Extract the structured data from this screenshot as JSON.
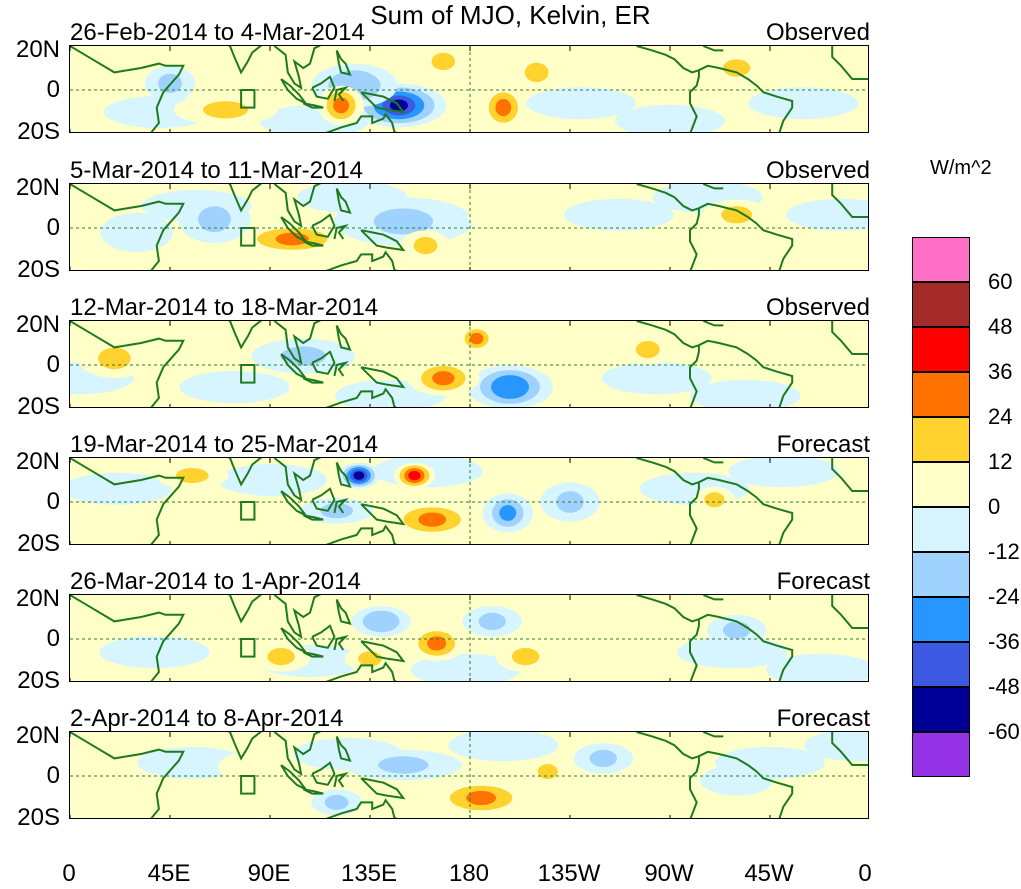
{
  "title": "Sum of MJO, Kelvin, ER",
  "units": "W/m^2",
  "lat_labels": [
    "20N",
    "0",
    "20S"
  ],
  "lon_labels": [
    "0",
    "45E",
    "90E",
    "135E",
    "180",
    "135W",
    "90W",
    "45W",
    "0"
  ],
  "colorbar": {
    "colors": [
      "#ff6ec7",
      "#a52a2a",
      "#ff0000",
      "#ff7200",
      "#ffd22e",
      "#ffffc8",
      "#d7f5ff",
      "#a0d2ff",
      "#2896ff",
      "#3c5ae1",
      "#000096",
      "#9632e6"
    ],
    "labels": [
      "60",
      "48",
      "36",
      "24",
      "12",
      "0",
      "-12",
      "-24",
      "-36",
      "-48",
      "-60"
    ]
  },
  "panels": [
    {
      "label": "26-Feb-2014 to 4-Mar-2014",
      "status": "Observed",
      "anomalies": [
        {
          "lon": 148,
          "lat": -7,
          "rx": 20,
          "ry": 9,
          "v": -55
        },
        {
          "lon": 128,
          "lat": 2,
          "rx": 18,
          "ry": 9,
          "v": -24
        },
        {
          "lon": 195,
          "lat": -8,
          "rx": 9,
          "ry": 9,
          "v": 30
        },
        {
          "lon": 122,
          "lat": -7,
          "rx": 9,
          "ry": 8,
          "v": 26
        },
        {
          "lon": 70,
          "lat": -9,
          "rx": 22,
          "ry": 6,
          "v": 22
        },
        {
          "lon": 210,
          "lat": 8,
          "rx": 10,
          "ry": 7,
          "v": 14
        },
        {
          "lon": 45,
          "lat": 3,
          "rx": 10,
          "ry": 7,
          "v": -16
        },
        {
          "lon": 168,
          "lat": 13,
          "rx": 10,
          "ry": 6,
          "v": 12
        },
        {
          "lon": 300,
          "lat": 10,
          "rx": 12,
          "ry": 6,
          "v": 14
        }
      ]
    },
    {
      "label": "5-Mar-2014 to 11-Mar-2014",
      "status": "Observed",
      "anomalies": [
        {
          "lon": 100,
          "lat": -5,
          "rx": 25,
          "ry": 6,
          "v": 30
        },
        {
          "lon": 65,
          "lat": 4,
          "rx": 15,
          "ry": 10,
          "v": -22
        },
        {
          "lon": 150,
          "lat": 3,
          "rx": 30,
          "ry": 10,
          "v": -14
        },
        {
          "lon": 160,
          "lat": -8,
          "rx": 10,
          "ry": 6,
          "v": 12
        },
        {
          "lon": 200,
          "lat": 5,
          "rx": 20,
          "ry": 5,
          "v": 10
        },
        {
          "lon": 300,
          "lat": 6,
          "rx": 14,
          "ry": 6,
          "v": 14
        },
        {
          "lon": 30,
          "lat": -2,
          "rx": 15,
          "ry": 8,
          "v": -12
        }
      ]
    },
    {
      "label": "12-Mar-2014 to 18-Mar-2014",
      "status": "Observed",
      "anomalies": [
        {
          "lon": 198,
          "lat": -10,
          "rx": 18,
          "ry": 9,
          "v": -36
        },
        {
          "lon": 168,
          "lat": -6,
          "rx": 15,
          "ry": 7,
          "v": 26
        },
        {
          "lon": 183,
          "lat": 12,
          "rx": 7,
          "ry": 5,
          "v": 26
        },
        {
          "lon": 105,
          "lat": 4,
          "rx": 22,
          "ry": 7,
          "v": -20
        },
        {
          "lon": 260,
          "lat": 7,
          "rx": 10,
          "ry": 6,
          "v": 12
        },
        {
          "lon": 20,
          "lat": 3,
          "rx": 15,
          "ry": 8,
          "v": 12
        }
      ]
    },
    {
      "label": "19-Mar-2014 to 25-Mar-2014",
      "status": "Forecast",
      "anomalies": [
        {
          "lon": 130,
          "lat": 12,
          "rx": 8,
          "ry": 5,
          "v": -50
        },
        {
          "lon": 155,
          "lat": 12,
          "rx": 8,
          "ry": 5,
          "v": 38
        },
        {
          "lon": 163,
          "lat": -8,
          "rx": 20,
          "ry": 7,
          "v": 28
        },
        {
          "lon": 197,
          "lat": -5,
          "rx": 10,
          "ry": 8,
          "v": -34
        },
        {
          "lon": 120,
          "lat": -4,
          "rx": 15,
          "ry": 5,
          "v": -16
        },
        {
          "lon": 225,
          "lat": 0,
          "rx": 12,
          "ry": 8,
          "v": -14
        },
        {
          "lon": 290,
          "lat": 1,
          "rx": 8,
          "ry": 5,
          "v": 12
        },
        {
          "lon": 55,
          "lat": 12,
          "rx": 15,
          "ry": 5,
          "v": 12
        }
      ]
    },
    {
      "label": "26-Mar-2014 to 1-Apr-2014",
      "status": "Forecast",
      "anomalies": [
        {
          "lon": 165,
          "lat": -2,
          "rx": 12,
          "ry": 7,
          "v": 30
        },
        {
          "lon": 140,
          "lat": 8,
          "rx": 12,
          "ry": 6,
          "v": -24
        },
        {
          "lon": 190,
          "lat": 8,
          "rx": 12,
          "ry": 6,
          "v": -18
        },
        {
          "lon": 205,
          "lat": -8,
          "rx": 12,
          "ry": 6,
          "v": 14
        },
        {
          "lon": 95,
          "lat": -8,
          "rx": 12,
          "ry": 6,
          "v": 12
        },
        {
          "lon": 135,
          "lat": -9,
          "rx": 10,
          "ry": 5,
          "v": 12
        },
        {
          "lon": 300,
          "lat": 4,
          "rx": 12,
          "ry": 6,
          "v": -14
        },
        {
          "lon": 60,
          "lat": 10,
          "rx": 15,
          "ry": 6,
          "v": 10
        }
      ]
    },
    {
      "label": "2-Apr-2014 to 8-Apr-2014",
      "status": "Forecast",
      "anomalies": [
        {
          "lon": 185,
          "lat": -10,
          "rx": 22,
          "ry": 7,
          "v": 28
        },
        {
          "lon": 150,
          "lat": 5,
          "rx": 25,
          "ry": 6,
          "v": -14
        },
        {
          "lon": 240,
          "lat": 8,
          "rx": 12,
          "ry": 6,
          "v": -16
        },
        {
          "lon": 215,
          "lat": 2,
          "rx": 8,
          "ry": 5,
          "v": 12
        },
        {
          "lon": 120,
          "lat": -12,
          "rx": 10,
          "ry": 5,
          "v": -18
        },
        {
          "lon": 80,
          "lat": 4,
          "rx": 12,
          "ry": 6,
          "v": 10
        },
        {
          "lon": 300,
          "lat": -2,
          "rx": 15,
          "ry": 6,
          "v": -12
        }
      ]
    }
  ]
}
